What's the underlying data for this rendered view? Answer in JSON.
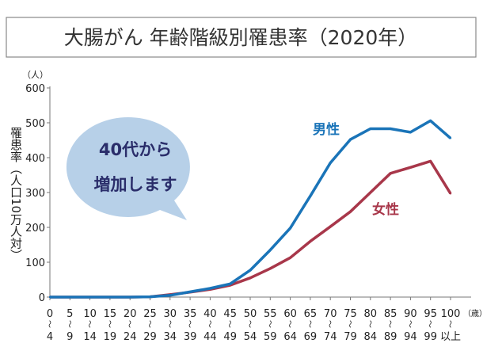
{
  "chart_data": {
    "type": "line",
    "title": "大腸がん 年齢階級別罹患率（2020年）",
    "ylabel": "罹患率（人口10万人対）",
    "yunit": "（人）",
    "xunit": "（歳）",
    "ylim": [
      0,
      600
    ],
    "yticks": [
      0,
      100,
      200,
      300,
      400,
      500,
      600
    ],
    "categories": [
      {
        "top": "0",
        "bottom": "4"
      },
      {
        "top": "5",
        "bottom": "9"
      },
      {
        "top": "10",
        "bottom": "14"
      },
      {
        "top": "15",
        "bottom": "19"
      },
      {
        "top": "20",
        "bottom": "24"
      },
      {
        "top": "25",
        "bottom": "29"
      },
      {
        "top": "30",
        "bottom": "34"
      },
      {
        "top": "35",
        "bottom": "39"
      },
      {
        "top": "40",
        "bottom": "44"
      },
      {
        "top": "45",
        "bottom": "49"
      },
      {
        "top": "50",
        "bottom": "54"
      },
      {
        "top": "55",
        "bottom": "59"
      },
      {
        "top": "60",
        "bottom": "64"
      },
      {
        "top": "65",
        "bottom": "69"
      },
      {
        "top": "70",
        "bottom": "74"
      },
      {
        "top": "75",
        "bottom": "79"
      },
      {
        "top": "80",
        "bottom": "84"
      },
      {
        "top": "85",
        "bottom": "89"
      },
      {
        "top": "90",
        "bottom": "94"
      },
      {
        "top": "95",
        "bottom": "99"
      },
      {
        "top": "100",
        "bottom": "以上"
      }
    ],
    "series": [
      {
        "name": "男性",
        "color": "#1a74b8",
        "values": [
          0,
          0,
          0,
          0,
          0,
          1,
          5,
          15,
          25,
          38,
          77,
          135,
          198,
          290,
          385,
          452,
          483,
          483,
          473,
          506,
          456
        ]
      },
      {
        "name": "女性",
        "color": "#a8374a",
        "values": [
          0,
          0,
          0,
          0,
          0,
          1,
          7,
          14,
          22,
          34,
          55,
          82,
          113,
          160,
          202,
          245,
          300,
          355,
          372,
          390,
          297
        ]
      }
    ],
    "annotation": {
      "line1": "40代から",
      "line2": "増加します",
      "bubble_color": "#b7d0e8",
      "text_color": "#2a2d6a"
    },
    "grid": false
  }
}
